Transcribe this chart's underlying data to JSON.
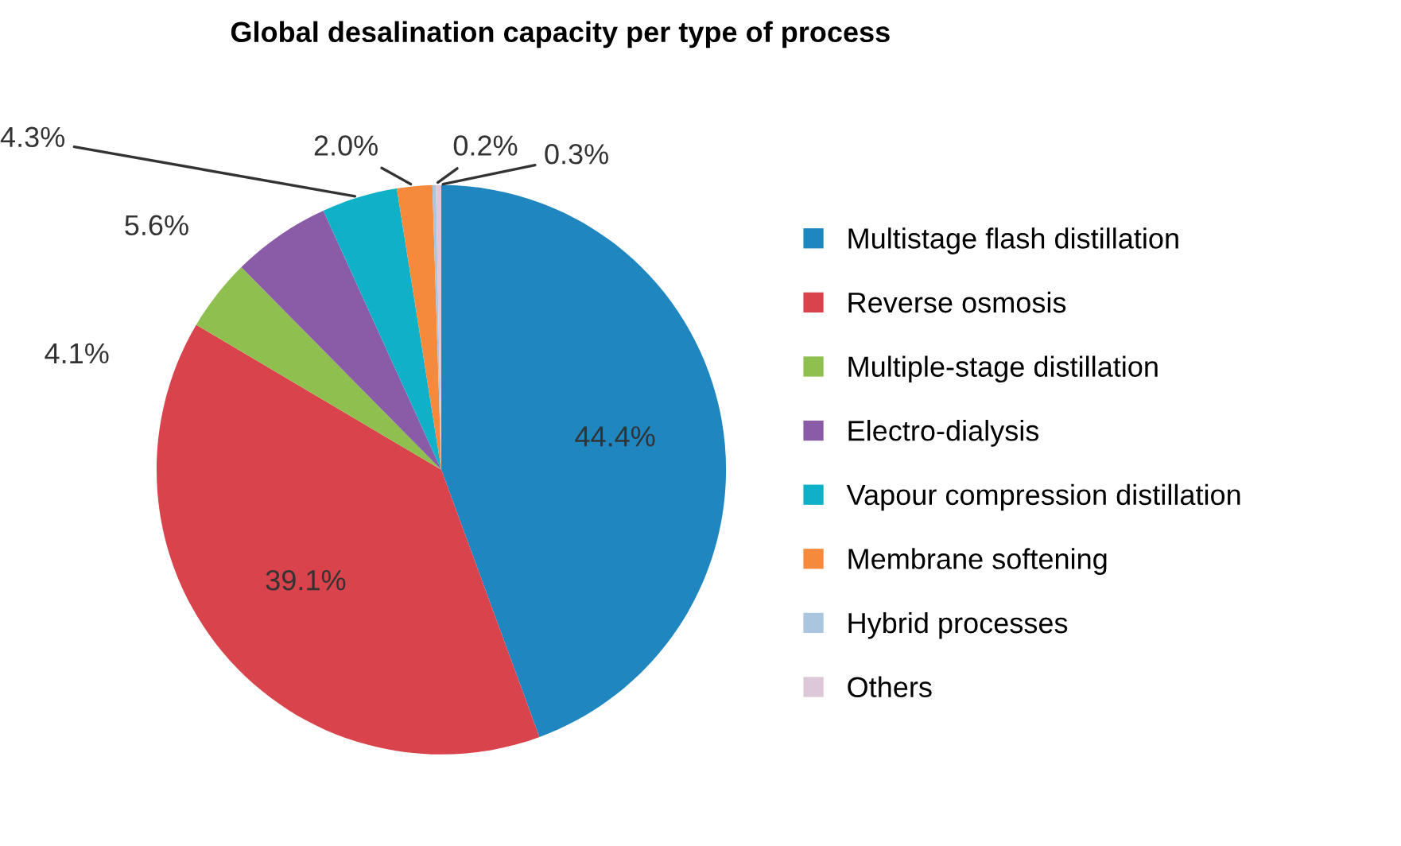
{
  "chart_data": {
    "type": "pie",
    "title": "Global desalination capacity per type of process",
    "categories": [
      "Multistage flash distillation",
      "Reverse osmosis",
      "Multiple-stage distillation",
      "Electro-dialysis",
      "Vapour compression distillation",
      "Membrane softening",
      "Hybrid processes",
      "Others"
    ],
    "values": [
      44.4,
      39.1,
      4.1,
      5.6,
      4.3,
      2.0,
      0.2,
      0.3
    ],
    "value_labels": [
      "44.4%",
      "39.1%",
      "4.1%",
      "5.6%",
      "4.3%",
      "2.0%",
      "0.2%",
      "0.3%"
    ],
    "colors": [
      "#1f86c0",
      "#d9434b",
      "#8fbf4f",
      "#8a5ca8",
      "#10b0c8",
      "#f58a3c",
      "#a9c6de",
      "#dcc8d6"
    ],
    "legend": "right"
  }
}
